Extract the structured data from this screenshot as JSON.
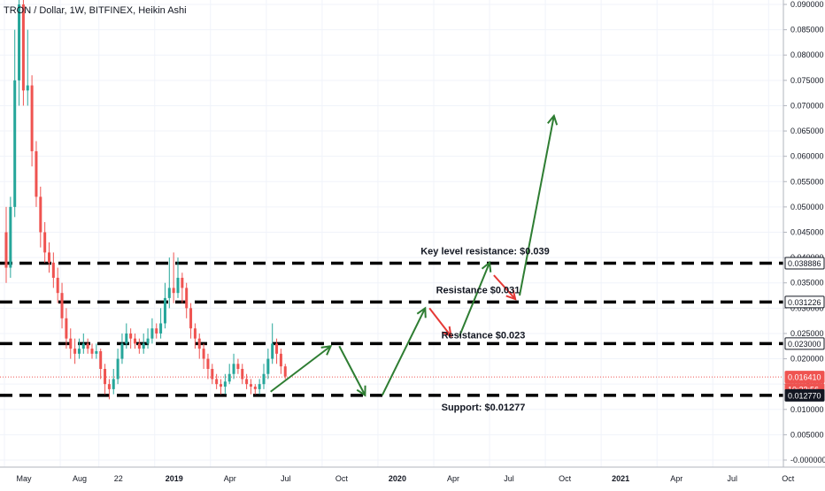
{
  "chart_data": {
    "type": "candlestick",
    "title": "TRON / Dollar, 1W, BITFINEX, Heikin Ashi",
    "y_axis": {
      "min": 0,
      "max": 0.09,
      "ticks": [
        "0.090000",
        "0.085000",
        "0.080000",
        "0.075000",
        "0.070000",
        "0.065000",
        "0.060000",
        "0.055000",
        "0.050000",
        "0.045000",
        "0.040000",
        "0.035000",
        "0.030000",
        "0.025000",
        "0.020000",
        "0.015000",
        "0.010000",
        "0.005000",
        "-0.000000"
      ],
      "tick_values": [
        0.09,
        0.085,
        0.08,
        0.075,
        0.07,
        0.065,
        0.06,
        0.055,
        0.05,
        0.045,
        0.04,
        0.035,
        0.03,
        0.025,
        0.02,
        0.015,
        0.01,
        0.005,
        0.0
      ],
      "position": "right"
    },
    "x_axis": {
      "ticks": [
        "May",
        "Aug",
        "22",
        "2019",
        "Apr",
        "Jul",
        "Oct",
        "2020",
        "Apr",
        "Jul",
        "Oct",
        "2021",
        "Apr",
        "Jul",
        "Oct"
      ],
      "bold_ticks": [
        "2019",
        "2020",
        "2021"
      ],
      "tick_positions_weeks": [
        0,
        13,
        22,
        35,
        48,
        61,
        74,
        87,
        100,
        113,
        126,
        139,
        152,
        165,
        178
      ]
    },
    "price_labels": [
      {
        "value": 0.038886,
        "label": "0.038886",
        "style": "outline"
      },
      {
        "value": 0.031226,
        "label": "0.031226",
        "style": "outline"
      },
      {
        "value": 0.023,
        "label": "0.023000",
        "style": "outline"
      },
      {
        "value": 0.01641,
        "label": "0.016410",
        "style": "red"
      },
      {
        "value": 0.01641,
        "label": "10:23:56",
        "style": "red-time"
      },
      {
        "value": 0.01277,
        "label": "0.012770",
        "style": "dark"
      }
    ],
    "levels": [
      {
        "value": 0.038886,
        "annotation": "Key level resistance: $0.039"
      },
      {
        "value": 0.031226,
        "annotation": "Resistance $0.031"
      },
      {
        "value": 0.023,
        "annotation": "Resistance $0.023"
      },
      {
        "value": 0.01277,
        "annotation": "Support: $0.01277"
      }
    ],
    "last_price": 0.01641,
    "colors": {
      "up": "#26a69a",
      "down": "#ef5350",
      "level_line": "#000000",
      "arrow_up": "#2e7d32",
      "arrow_down": "#e53935",
      "last_price_line": "#ef5350"
    },
    "candles": [
      [
        0.045,
        0.038,
        0.05,
        0.035
      ],
      [
        0.038,
        0.05,
        0.052,
        0.036
      ],
      [
        0.05,
        0.075,
        0.085,
        0.048
      ],
      [
        0.075,
        0.09,
        0.095,
        0.07
      ],
      [
        0.09,
        0.073,
        0.092,
        0.07
      ],
      [
        0.073,
        0.074,
        0.085,
        0.07
      ],
      [
        0.074,
        0.061,
        0.076,
        0.058
      ],
      [
        0.061,
        0.052,
        0.063,
        0.05
      ],
      [
        0.052,
        0.045,
        0.054,
        0.042
      ],
      [
        0.045,
        0.041,
        0.047,
        0.039
      ],
      [
        0.041,
        0.039,
        0.043,
        0.037
      ],
      [
        0.039,
        0.036,
        0.041,
        0.034
      ],
      [
        0.036,
        0.033,
        0.038,
        0.031
      ],
      [
        0.033,
        0.028,
        0.035,
        0.026
      ],
      [
        0.028,
        0.024,
        0.03,
        0.022
      ],
      [
        0.024,
        0.022,
        0.026,
        0.02
      ],
      [
        0.022,
        0.021,
        0.024,
        0.019
      ],
      [
        0.021,
        0.022,
        0.024,
        0.02
      ],
      [
        0.022,
        0.023,
        0.025,
        0.021
      ],
      [
        0.023,
        0.022,
        0.024,
        0.021
      ],
      [
        0.022,
        0.021,
        0.023,
        0.02
      ],
      [
        0.021,
        0.0215,
        0.023,
        0.02
      ],
      [
        0.0215,
        0.018,
        0.022,
        0.016
      ],
      [
        0.018,
        0.015,
        0.019,
        0.013
      ],
      [
        0.015,
        0.014,
        0.016,
        0.012
      ],
      [
        0.014,
        0.016,
        0.018,
        0.013
      ],
      [
        0.016,
        0.02,
        0.022,
        0.015
      ],
      [
        0.02,
        0.023,
        0.025,
        0.019
      ],
      [
        0.023,
        0.025,
        0.027,
        0.022
      ],
      [
        0.025,
        0.024,
        0.026,
        0.022
      ],
      [
        0.024,
        0.023,
        0.025,
        0.022
      ],
      [
        0.023,
        0.022,
        0.024,
        0.021
      ],
      [
        0.022,
        0.023,
        0.025,
        0.021
      ],
      [
        0.023,
        0.024,
        0.026,
        0.022
      ],
      [
        0.024,
        0.026,
        0.028,
        0.023
      ],
      [
        0.026,
        0.025,
        0.027,
        0.024
      ],
      [
        0.025,
        0.027,
        0.03,
        0.024
      ],
      [
        0.027,
        0.032,
        0.035,
        0.026
      ],
      [
        0.032,
        0.034,
        0.04,
        0.03
      ],
      [
        0.034,
        0.033,
        0.041,
        0.031
      ],
      [
        0.033,
        0.036,
        0.04,
        0.032
      ],
      [
        0.036,
        0.034,
        0.037,
        0.031
      ],
      [
        0.034,
        0.03,
        0.035,
        0.028
      ],
      [
        0.03,
        0.026,
        0.031,
        0.024
      ],
      [
        0.026,
        0.024,
        0.027,
        0.022
      ],
      [
        0.024,
        0.022,
        0.025,
        0.02
      ],
      [
        0.022,
        0.02,
        0.023,
        0.018
      ],
      [
        0.02,
        0.018,
        0.021,
        0.016
      ],
      [
        0.018,
        0.016,
        0.019,
        0.015
      ],
      [
        0.016,
        0.015,
        0.017,
        0.014
      ],
      [
        0.015,
        0.0145,
        0.016,
        0.013
      ],
      [
        0.0145,
        0.0155,
        0.017,
        0.013
      ],
      [
        0.0155,
        0.017,
        0.019,
        0.015
      ],
      [
        0.017,
        0.019,
        0.021,
        0.016
      ],
      [
        0.019,
        0.018,
        0.02,
        0.017
      ],
      [
        0.018,
        0.016,
        0.019,
        0.015
      ],
      [
        0.016,
        0.015,
        0.017,
        0.014
      ],
      [
        0.015,
        0.0145,
        0.016,
        0.013
      ],
      [
        0.0145,
        0.014,
        0.015,
        0.013
      ],
      [
        0.014,
        0.015,
        0.016,
        0.013
      ],
      [
        0.015,
        0.017,
        0.019,
        0.014
      ],
      [
        0.017,
        0.02,
        0.022,
        0.016
      ],
      [
        0.02,
        0.023,
        0.027,
        0.019
      ],
      [
        0.023,
        0.021,
        0.024,
        0.019
      ],
      [
        0.021,
        0.0185,
        0.022,
        0.017
      ],
      [
        0.0185,
        0.0165,
        0.019,
        0.016
      ]
    ],
    "arrows": [
      {
        "color": "up",
        "from": [
          62,
          0.0135
        ],
        "to": [
          76,
          0.0225
        ]
      },
      {
        "color": "up",
        "from": [
          78,
          0.0225
        ],
        "to": [
          84,
          0.0128
        ]
      },
      {
        "color": "up",
        "from": [
          88,
          0.0128
        ],
        "to": [
          98,
          0.03
        ]
      },
      {
        "color": "down",
        "from": [
          99,
          0.03
        ],
        "to": [
          104,
          0.0245
        ]
      },
      {
        "color": "up",
        "from": [
          106,
          0.0245
        ],
        "to": [
          113,
          0.039
        ]
      },
      {
        "color": "down",
        "from": [
          114,
          0.0365
        ],
        "to": [
          119,
          0.0318
        ]
      },
      {
        "color": "up",
        "from": [
          120,
          0.0325
        ],
        "to": [
          128,
          0.068
        ]
      }
    ]
  }
}
